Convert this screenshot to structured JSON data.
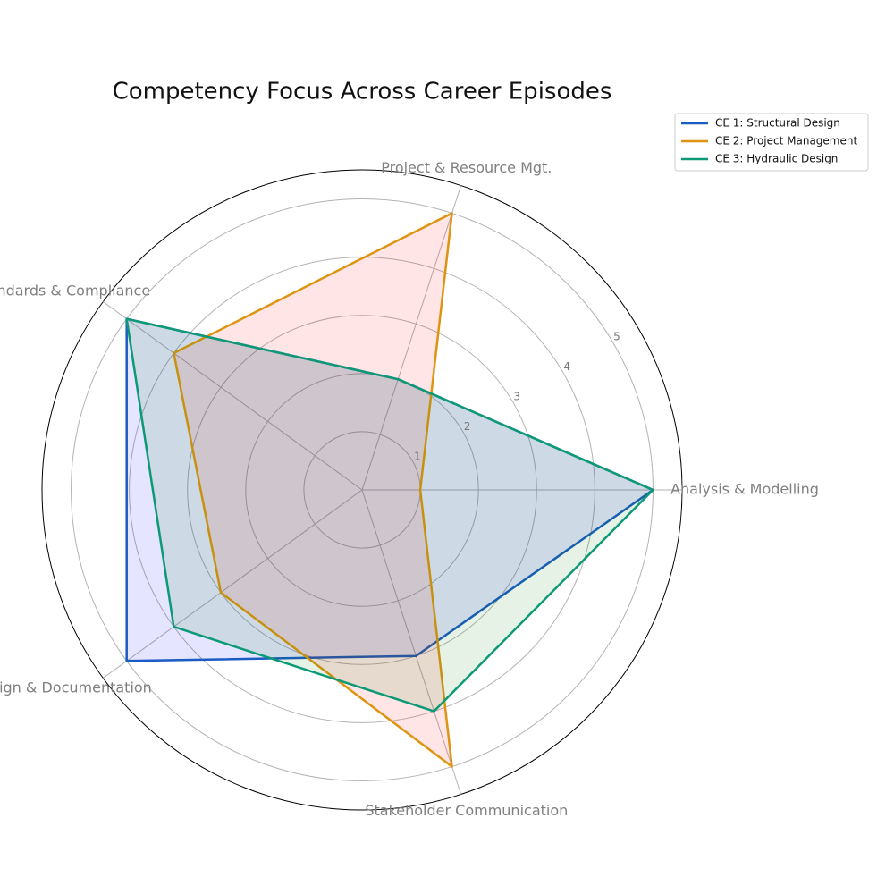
{
  "chart_data": {
    "type": "radar",
    "title": "Competency Focus Across Career Episodes",
    "categories": [
      "Analysis & Modelling",
      "Project & Resource Mgt.",
      "Standards & Compliance",
      "Design & Documentation",
      "Stakeholder Communication"
    ],
    "rlim": [
      0,
      5.5
    ],
    "rticks": [
      1,
      2,
      3,
      4,
      5
    ],
    "grid": true,
    "legend": "upper right",
    "series": [
      {
        "name": "CE 1: Structural Design",
        "color": "#1a5bc4",
        "fill_color": "#0000ff",
        "values": [
          5,
          2,
          5,
          5,
          3
        ]
      },
      {
        "name": "CE 2: Project Management",
        "color": "#de9411",
        "fill_color": "#ff0000",
        "values": [
          1,
          5,
          4,
          3,
          5
        ]
      },
      {
        "name": "CE 3: Hydraulic Design",
        "color": "#0c9a76",
        "fill_color": "#008000",
        "values": [
          5,
          2,
          5,
          4,
          4
        ]
      }
    ]
  }
}
